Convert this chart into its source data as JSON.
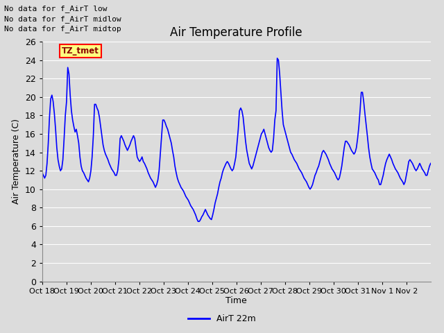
{
  "title": "Air Temperature Profile",
  "ylabel": "Air Temperature (C)",
  "xlabel": "Time",
  "legend_label": "AirT 22m",
  "line_color": "#0000ff",
  "bg_color": "#dcdcdc",
  "grid_color": "#ffffff",
  "ylim": [
    0,
    26
  ],
  "xlim": [
    0,
    16
  ],
  "yticks": [
    0,
    2,
    4,
    6,
    8,
    10,
    12,
    14,
    16,
    18,
    20,
    22,
    24,
    26
  ],
  "x_tick_labels": [
    "Oct 18",
    "Oct 19",
    "Oct 20",
    "Oct 21",
    "Oct 22",
    "Oct 23",
    "Oct 24",
    "Oct 25",
    "Oct 26",
    "Oct 27",
    "Oct 28",
    "Oct 29",
    "Oct 30",
    "Oct 31",
    "Nov 1",
    "Nov 2"
  ],
  "text_annotations": [
    "No data for f_AirT low",
    "No data for f_AirT midlow",
    "No data for f_AirT midtop"
  ],
  "tz_label": "TZ_tmet",
  "temperatures": [
    11.8,
    11.5,
    11.2,
    11.5,
    12.8,
    15.0,
    17.8,
    19.8,
    20.2,
    19.5,
    18.2,
    16.5,
    14.5,
    13.2,
    12.5,
    12.0,
    12.2,
    13.2,
    15.5,
    18.0,
    19.5,
    23.2,
    22.5,
    20.2,
    18.5,
    17.5,
    16.8,
    16.2,
    16.5,
    15.8,
    15.0,
    13.5,
    12.5,
    12.0,
    11.8,
    11.5,
    11.2,
    11.0,
    10.8,
    11.2,
    12.0,
    13.5,
    15.8,
    19.2,
    19.2,
    18.8,
    18.5,
    17.8,
    16.8,
    15.8,
    14.8,
    14.2,
    13.8,
    13.5,
    13.2,
    12.8,
    12.5,
    12.2,
    12.0,
    11.8,
    11.5,
    11.5,
    12.0,
    13.2,
    15.5,
    15.8,
    15.5,
    15.2,
    14.8,
    14.5,
    14.2,
    14.5,
    14.8,
    15.2,
    15.5,
    15.8,
    15.5,
    14.5,
    13.5,
    13.2,
    13.0,
    13.2,
    13.5,
    13.0,
    12.8,
    12.5,
    12.2,
    11.8,
    11.5,
    11.2,
    11.0,
    10.8,
    10.5,
    10.2,
    10.5,
    11.0,
    12.0,
    13.8,
    15.5,
    17.5,
    17.5,
    17.2,
    16.8,
    16.5,
    16.0,
    15.5,
    15.0,
    14.2,
    13.5,
    12.5,
    11.8,
    11.2,
    10.8,
    10.5,
    10.2,
    10.0,
    9.8,
    9.5,
    9.2,
    9.0,
    8.8,
    8.5,
    8.2,
    8.0,
    7.8,
    7.5,
    7.2,
    6.8,
    6.5,
    6.5,
    6.7,
    7.0,
    7.2,
    7.5,
    7.8,
    7.5,
    7.2,
    7.0,
    6.8,
    6.7,
    7.2,
    7.8,
    8.5,
    9.0,
    9.5,
    10.2,
    10.8,
    11.2,
    11.8,
    12.2,
    12.5,
    12.8,
    13.0,
    12.8,
    12.5,
    12.2,
    12.0,
    12.2,
    12.8,
    13.5,
    15.0,
    16.5,
    18.5,
    18.8,
    18.5,
    17.8,
    16.5,
    15.2,
    14.2,
    13.5,
    12.8,
    12.5,
    12.2,
    12.5,
    13.0,
    13.5,
    14.0,
    14.5,
    15.0,
    15.5,
    16.0,
    16.2,
    16.5,
    16.0,
    15.5,
    15.0,
    14.5,
    14.2,
    14.0,
    14.2,
    15.5,
    17.5,
    18.5,
    24.2,
    24.0,
    22.5,
    20.5,
    18.5,
    17.0,
    16.5,
    16.0,
    15.5,
    15.0,
    14.5,
    14.0,
    13.8,
    13.5,
    13.2,
    13.0,
    12.8,
    12.5,
    12.2,
    12.0,
    11.8,
    11.5,
    11.2,
    11.0,
    10.8,
    10.5,
    10.2,
    10.0,
    10.2,
    10.5,
    11.0,
    11.5,
    11.8,
    12.2,
    12.5,
    13.0,
    13.5,
    14.0,
    14.2,
    14.0,
    13.8,
    13.5,
    13.2,
    12.8,
    12.5,
    12.2,
    12.0,
    11.8,
    11.5,
    11.2,
    11.0,
    11.2,
    11.8,
    12.5,
    13.5,
    14.5,
    15.2,
    15.2,
    15.0,
    14.8,
    14.5,
    14.2,
    14.0,
    13.8,
    14.0,
    14.5,
    15.5,
    16.8,
    18.5,
    20.5,
    20.5,
    19.5,
    18.2,
    17.0,
    15.8,
    14.5,
    13.5,
    12.8,
    12.2,
    12.0,
    11.8,
    11.5,
    11.2,
    11.0,
    10.5,
    10.5,
    11.0,
    11.5,
    12.2,
    12.8,
    13.2,
    13.5,
    13.8,
    13.5,
    13.2,
    12.8,
    12.5,
    12.2,
    12.0,
    11.8,
    11.5,
    11.2,
    11.0,
    10.8,
    10.5,
    10.8,
    11.5,
    12.2,
    13.0,
    13.2,
    13.0,
    12.8,
    12.5,
    12.2,
    12.0,
    12.2,
    12.5,
    12.8,
    12.5,
    12.2,
    12.0,
    11.8,
    11.5,
    11.5,
    12.0,
    12.5,
    12.8
  ]
}
